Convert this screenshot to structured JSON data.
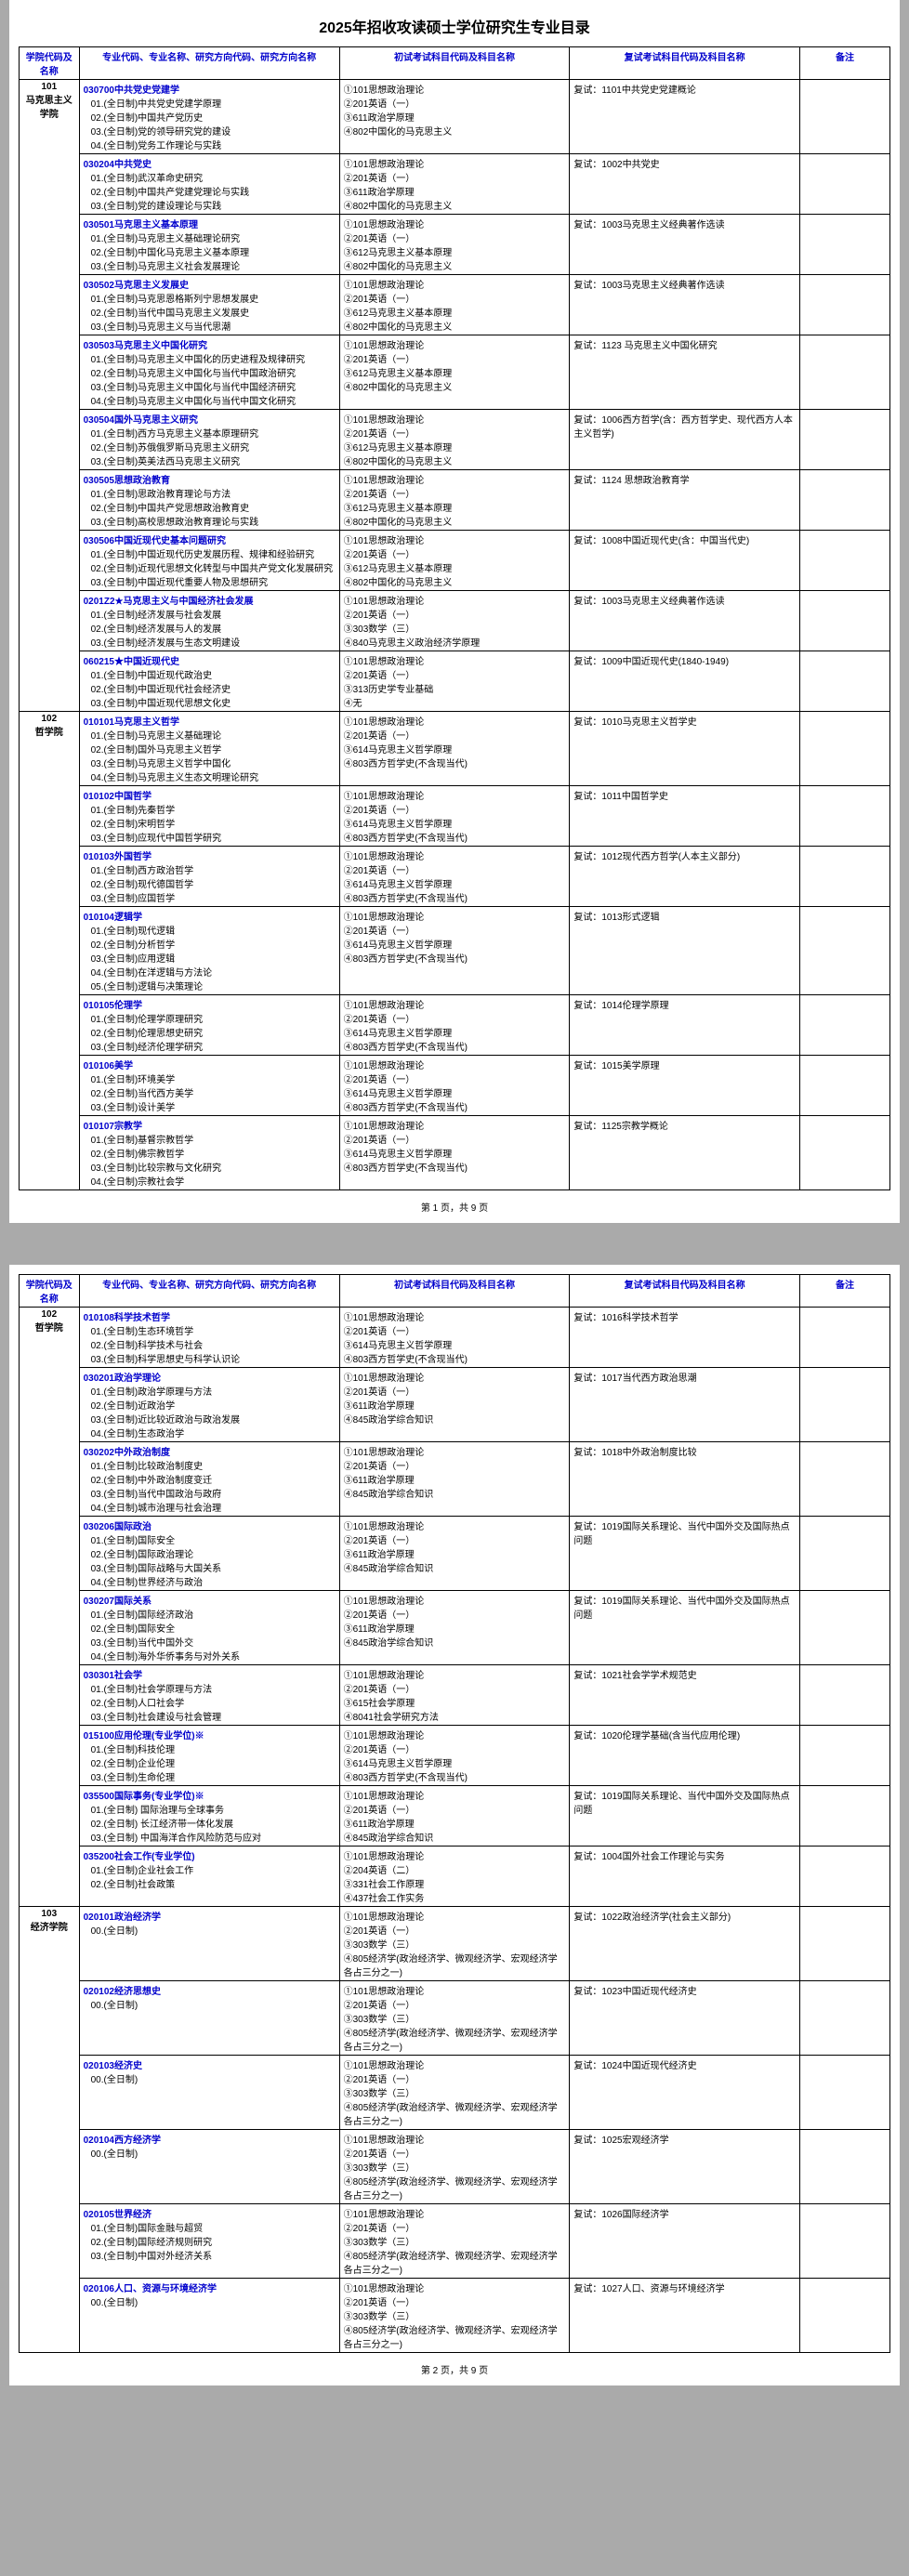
{
  "docTitle": "2025年招收攻读硕士学位研究生专业目录",
  "headers": {
    "college": "学院代码及名称",
    "major": "专业代码、专业名称、研究方向代码、研究方向名称",
    "prelim": "初试考试科目代码及科目名称",
    "retest": "复试考试科目代码及科目名称",
    "remark": "备注"
  },
  "footers": {
    "p1": "第 1 页，共 9 页",
    "p2": "第 2 页，共 9 页"
  },
  "page1": {
    "colleges": [
      {
        "name": "101\n马克思主义学院",
        "majors": [
          {
            "title": "030700中共党史党建学",
            "dirs": [
              "01.(全日制)中共党史党建学原理",
              "02.(全日制)中国共产党历史",
              "03.(全日制)党的领导研究党的建设",
              "04.(全日制)党务工作理论与实践"
            ],
            "prelim": [
              "①101思想政治理论",
              "②201英语（一）",
              "③611政治学原理",
              "④802中国化的马克思主义"
            ],
            "retest": "复试：1101中共党史党建概论"
          },
          {
            "title": "030204中共党史",
            "dirs": [
              "01.(全日制)武汉革命史研究",
              "02.(全日制)中国共产党建党理论与实践",
              "03.(全日制)党的建设理论与实践"
            ],
            "prelim": [
              "①101思想政治理论",
              "②201英语（一）",
              "③611政治学原理",
              "④802中国化的马克思主义"
            ],
            "retest": "复试：1002中共党史"
          },
          {
            "title": "030501马克思主义基本原理",
            "dirs": [
              "01.(全日制)马克思主义基础理论研究",
              "02.(全日制)中国化马克思主义基本原理",
              "03.(全日制)马克思主义社会发展理论"
            ],
            "prelim": [
              "①101思想政治理论",
              "②201英语（一）",
              "③612马克思主义基本原理",
              "④802中国化的马克思主义"
            ],
            "retest": "复试：1003马克思主义经典著作选读"
          },
          {
            "title": "030502马克思主义发展史",
            "dirs": [
              "01.(全日制)马克思恩格斯列宁思想发展史",
              "02.(全日制)当代中国马克思主义发展史",
              "03.(全日制)马克思主义与当代思潮"
            ],
            "prelim": [
              "①101思想政治理论",
              "②201英语（一）",
              "③612马克思主义基本原理",
              "④802中国化的马克思主义"
            ],
            "retest": "复试：1003马克思主义经典著作选读"
          },
          {
            "title": "030503马克思主义中国化研究",
            "dirs": [
              "01.(全日制)马克思主义中国化的历史进程及规律研究",
              "02.(全日制)马克思主义中国化与当代中国政治研究",
              "03.(全日制)马克思主义中国化与当代中国经济研究",
              "04.(全日制)马克思主义中国化与当代中国文化研究"
            ],
            "prelim": [
              "①101思想政治理论",
              "②201英语（一）",
              "③612马克思主义基本原理",
              "④802中国化的马克思主义"
            ],
            "retest": "复试：1123 马克思主义中国化研究"
          },
          {
            "title": "030504国外马克思主义研究",
            "dirs": [
              "01.(全日制)西方马克思主义基本原理研究",
              "02.(全日制)苏俄俄罗斯马克思主义研究",
              "03.(全日制)英美法西马克思主义研究"
            ],
            "prelim": [
              "①101思想政治理论",
              "②201英语（一）",
              "③612马克思主义基本原理",
              "④802中国化的马克思主义"
            ],
            "retest": "复试：1006西方哲学(含：西方哲学史、现代西方人本主义哲学)"
          },
          {
            "title": "030505思想政治教育",
            "dirs": [
              "01.(全日制)思政治教育理论与方法",
              "02.(全日制)中国共产党思想政治教育史",
              "03.(全日制)高校思想政治教育理论与实践"
            ],
            "prelim": [
              "①101思想政治理论",
              "②201英语（一）",
              "③612马克思主义基本原理",
              "④802中国化的马克思主义"
            ],
            "retest": "复试：1124 思想政治教育学"
          },
          {
            "title": "030506中国近现代史基本问题研究",
            "dirs": [
              "01.(全日制)中国近现代历史发展历程、规律和经验研究",
              "02.(全日制)近现代思想文化转型与中国共产党文化发展研究",
              "03.(全日制)中国近现代重要人物及思想研究"
            ],
            "prelim": [
              "①101思想政治理论",
              "②201英语（一）",
              "③612马克思主义基本原理",
              "④802中国化的马克思主义"
            ],
            "retest": "复试：1008中国近现代史(含：中国当代史)"
          },
          {
            "title": "0201Z2★马克思主义与中国经济社会发展",
            "dirs": [
              "01.(全日制)经济发展与社会发展",
              "02.(全日制)经济发展与人的发展",
              "03.(全日制)经济发展与生态文明建设"
            ],
            "prelim": [
              "①101思想政治理论",
              "②201英语（一）",
              "③303数学（三）",
              "④840马克思主义政治经济学原理"
            ],
            "retest": "复试：1003马克思主义经典著作选读"
          },
          {
            "title": "060215★中国近现代史",
            "dirs": [
              "01.(全日制)中国近现代政治史",
              "02.(全日制)中国近现代社会经济史",
              "03.(全日制)中国近现代思想文化史"
            ],
            "prelim": [
              "①101思想政治理论",
              "②201英语（一）",
              "③313历史学专业基础",
              "④无"
            ],
            "retest": "复试：1009中国近现代史(1840-1949)"
          }
        ]
      },
      {
        "name": "102\n哲学院",
        "majors": [
          {
            "title": "010101马克思主义哲学",
            "dirs": [
              "01.(全日制)马克思主义基础理论",
              "02.(全日制)国外马克思主义哲学",
              "03.(全日制)马克思主义哲学中国化",
              "04.(全日制)马克思主义生态文明理论研究"
            ],
            "prelim": [
              "①101思想政治理论",
              "②201英语（一）",
              "③614马克思主义哲学原理",
              "④803西方哲学史(不含现当代)"
            ],
            "retest": "复试：1010马克思主义哲学史"
          },
          {
            "title": "010102中国哲学",
            "dirs": [
              "01.(全日制)先秦哲学",
              "02.(全日制)宋明哲学",
              "03.(全日制)应现代中国哲学研究"
            ],
            "prelim": [
              "①101思想政治理论",
              "②201英语（一）",
              "③614马克思主义哲学原理",
              "④803西方哲学史(不含现当代)"
            ],
            "retest": "复试：1011中国哲学史"
          },
          {
            "title": "010103外国哲学",
            "dirs": [
              "01.(全日制)西方政治哲学",
              "02.(全日制)现代德国哲学",
              "03.(全日制)应国哲学"
            ],
            "prelim": [
              "①101思想政治理论",
              "②201英语（一）",
              "③614马克思主义哲学原理",
              "④803西方哲学史(不含现当代)"
            ],
            "retest": "复试：1012现代西方哲学(人本主义部分)"
          },
          {
            "title": "010104逻辑学",
            "dirs": [
              "01.(全日制)现代逻辑",
              "02.(全日制)分析哲学",
              "03.(全日制)应用逻辑",
              "04.(全日制)在洋逻辑与方法论",
              "05.(全日制)逻辑与决策理论"
            ],
            "prelim": [
              "①101思想政治理论",
              "②201英语（一）",
              "③614马克思主义哲学原理",
              "④803西方哲学史(不含现当代)"
            ],
            "retest": "复试：1013形式逻辑"
          },
          {
            "title": "010105伦理学",
            "dirs": [
              "01.(全日制)伦理学原理研究",
              "02.(全日制)伦理思想史研究",
              "03.(全日制)经济伦理学研究"
            ],
            "prelim": [
              "①101思想政治理论",
              "②201英语（一）",
              "③614马克思主义哲学原理",
              "④803西方哲学史(不含现当代)"
            ],
            "retest": "复试：1014伦理学原理"
          },
          {
            "title": "010106美学",
            "dirs": [
              "01.(全日制)环境美学",
              "02.(全日制)当代西方美学",
              "03.(全日制)设计美学"
            ],
            "prelim": [
              "①101思想政治理论",
              "②201英语（一）",
              "③614马克思主义哲学原理",
              "④803西方哲学史(不含现当代)"
            ],
            "retest": "复试：1015美学原理"
          },
          {
            "title": "010107宗教学",
            "dirs": [
              "01.(全日制)基督宗教哲学",
              "02.(全日制)佛宗教哲学",
              "03.(全日制)比较宗教与文化研究",
              "04.(全日制)宗教社会学"
            ],
            "prelim": [
              "①101思想政治理论",
              "②201英语（一）",
              "③614马克思主义哲学原理",
              "④803西方哲学史(不含现当代)"
            ],
            "retest": "复试：1125宗教学概论"
          }
        ]
      }
    ]
  },
  "page2": {
    "colleges": [
      {
        "name": "102\n哲学院",
        "majors": [
          {
            "title": "010108科学技术哲学",
            "dirs": [
              "01.(全日制)生态环境哲学",
              "02.(全日制)科学技术与社会",
              "03.(全日制)科学思想史与科学认识论"
            ],
            "prelim": [
              "①101思想政治理论",
              "②201英语（一）",
              "③614马克思主义哲学原理",
              "④803西方哲学史(不含现当代)"
            ],
            "retest": "复试：1016科学技术哲学"
          },
          {
            "title": "030201政治学理论",
            "dirs": [
              "01.(全日制)政治学原理与方法",
              "02.(全日制)近政治学",
              "03.(全日制)近比较近政治与政治发展",
              "04.(全日制)生态政治学"
            ],
            "prelim": [
              "①101思想政治理论",
              "②201英语（一）",
              "③611政治学原理",
              "④845政治学综合知识"
            ],
            "retest": "复试：1017当代西方政治思潮"
          },
          {
            "title": "030202中外政治制度",
            "dirs": [
              "01.(全日制)比较政治制度史",
              "02.(全日制)中外政治制度变迁",
              "03.(全日制)当代中国政治与政府",
              "04.(全日制)城市治理与社会治理"
            ],
            "prelim": [
              "①101思想政治理论",
              "②201英语（一）",
              "③611政治学原理",
              "④845政治学综合知识"
            ],
            "retest": "复试：1018中外政治制度比较"
          },
          {
            "title": "030206国际政治",
            "dirs": [
              "01.(全日制)国际安全",
              "02.(全日制)国际政治理论",
              "03.(全日制)国际战略与大国关系",
              "04.(全日制)世界经济与政治"
            ],
            "prelim": [
              "①101思想政治理论",
              "②201英语（一）",
              "③611政治学原理",
              "④845政治学综合知识"
            ],
            "retest": "复试：1019国际关系理论、当代中国外交及国际热点问题"
          },
          {
            "title": "030207国际关系",
            "dirs": [
              "01.(全日制)国际经济政治",
              "02.(全日制)国际安全",
              "03.(全日制)当代中国外交",
              "04.(全日制)海外华侨事务与对外关系"
            ],
            "prelim": [
              "①101思想政治理论",
              "②201英语（一）",
              "③611政治学原理",
              "④845政治学综合知识"
            ],
            "retest": "复试：1019国际关系理论、当代中国外交及国际热点问题"
          },
          {
            "title": "030301社会学",
            "dirs": [
              "01.(全日制)社会学原理与方法",
              "02.(全日制)人口社会学",
              "03.(全日制)社会建设与社会管理"
            ],
            "prelim": [
              "①101思想政治理论",
              "②201英语（一）",
              "③615社会学原理",
              "④8041社会学研究方法"
            ],
            "retest": "复试：1021社会学学术规范史"
          },
          {
            "title": "015100应用伦理(专业学位)※",
            "dirs": [
              "01.(全日制)科技伦理",
              "02.(全日制)企业伦理",
              "03.(全日制)生命伦理"
            ],
            "prelim": [
              "①101思想政治理论",
              "②201英语（一）",
              "③614马克思主义哲学原理",
              "④803西方哲学史(不含现当代)"
            ],
            "retest": "复试：1020伦理学基础(含当代应用伦理)"
          },
          {
            "title": "035500国际事务(专业学位)※",
            "dirs": [
              "01.(全日制)  国际治理与全球事务",
              "02.(全日制)  长江经济带一体化发展",
              "03.(全日制)  中国海洋合作风险防范与应对"
            ],
            "prelim": [
              "①101思想政治理论",
              "②201英语（一）",
              "③611政治学原理",
              "④845政治学综合知识"
            ],
            "retest": "复试：1019国际关系理论、当代中国外交及国际热点问题"
          },
          {
            "title": "035200社会工作(专业学位)",
            "dirs": [
              "01.(全日制)企业社会工作",
              "02.(全日制)社会政策"
            ],
            "prelim": [
              "①101思想政治理论",
              "②204英语（二）",
              "③331社会工作原理",
              "④437社会工作实务"
            ],
            "retest": "复试：1004国外社会工作理论与实务"
          }
        ]
      },
      {
        "name": "103\n经济学院",
        "majors": [
          {
            "title": "020101政治经济学",
            "dirs": [
              "00.(全日制)"
            ],
            "prelim": [
              "①101思想政治理论",
              "②201英语（一）",
              "③303数学（三）",
              "④805经济学(政治经济学、微观经济学、宏观经济学各占三分之一)"
            ],
            "retest": "复试：1022政治经济学(社会主义部分)"
          },
          {
            "title": "020102经济思想史",
            "dirs": [
              "00.(全日制)"
            ],
            "prelim": [
              "①101思想政治理论",
              "②201英语（一）",
              "③303数学（三）",
              "④805经济学(政治经济学、微观经济学、宏观经济学各占三分之一)"
            ],
            "retest": "复试：1023中国近现代经济史"
          },
          {
            "title": "020103经济史",
            "dirs": [
              "00.(全日制)"
            ],
            "prelim": [
              "①101思想政治理论",
              "②201英语（一）",
              "③303数学（三）",
              "④805经济学(政治经济学、微观经济学、宏观经济学各占三分之一)"
            ],
            "retest": "复试：1024中国近现代经济史"
          },
          {
            "title": "020104西方经济学",
            "dirs": [
              "00.(全日制)"
            ],
            "prelim": [
              "①101思想政治理论",
              "②201英语（一）",
              "③303数学（三）",
              "④805经济学(政治经济学、微观经济学、宏观经济学各占三分之一)"
            ],
            "retest": "复试：1025宏观经济学"
          },
          {
            "title": "020105世界经济",
            "dirs": [
              "01.(全日制)国际金融与超贸",
              "02.(全日制)国际经济规则研究",
              "03.(全日制)中国对外经济关系"
            ],
            "prelim": [
              "①101思想政治理论",
              "②201英语（一）",
              "③303数学（三）",
              "④805经济学(政治经济学、微观经济学、宏观经济学各占三分之一)"
            ],
            "retest": "复试：1026国际经济学"
          },
          {
            "title": "020106人口、资源与环境经济学",
            "dirs": [
              "00.(全日制)"
            ],
            "prelim": [
              "①101思想政治理论",
              "②201英语（一）",
              "③303数学（三）",
              "④805经济学(政治经济学、微观经济学、宏观经济学各占三分之一)"
            ],
            "retest": "复试：1027人口、资源与环境经济学"
          }
        ]
      }
    ]
  }
}
